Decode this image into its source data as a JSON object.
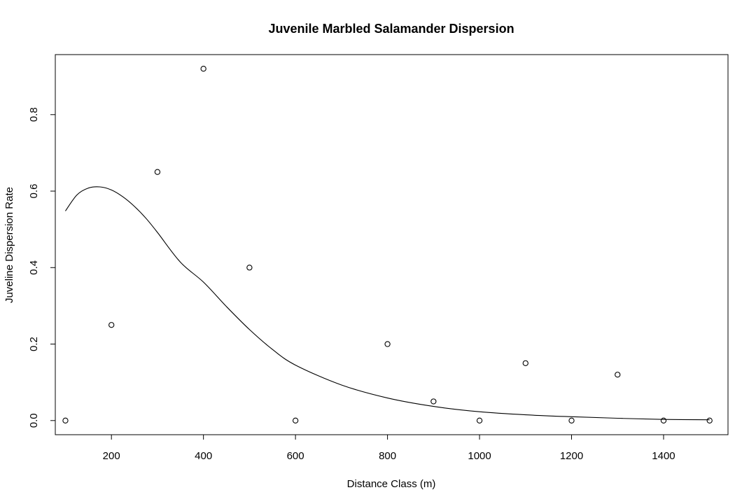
{
  "chart_data": {
    "type": "scatter",
    "title": "Juvenile Marbled Salamander Dispersion",
    "xlabel": "Distance Class (m)",
    "ylabel": "Juveline Dispersion Rate",
    "xlim": [
      78,
      1540
    ],
    "ylim": [
      -0.037,
      0.957
    ],
    "x_ticks": [
      200,
      400,
      600,
      800,
      1000,
      1200,
      1400
    ],
    "x_tick_labels": [
      "200",
      "400",
      "600",
      "800",
      "1000",
      "1200",
      "1400"
    ],
    "y_ticks": [
      0.0,
      0.2,
      0.4,
      0.6,
      0.8
    ],
    "y_tick_labels": [
      "0.0",
      "0.2",
      "0.4",
      "0.6",
      "0.8"
    ],
    "grid": false,
    "marker": "open-circle",
    "points": [
      {
        "x": 100,
        "y": 0.0
      },
      {
        "x": 200,
        "y": 0.25
      },
      {
        "x": 300,
        "y": 0.65
      },
      {
        "x": 400,
        "y": 0.92
      },
      {
        "x": 500,
        "y": 0.4
      },
      {
        "x": 600,
        "y": 0.0
      },
      {
        "x": 800,
        "y": 0.2
      },
      {
        "x": 900,
        "y": 0.05
      },
      {
        "x": 1000,
        "y": 0.0
      },
      {
        "x": 1100,
        "y": 0.15
      },
      {
        "x": 1200,
        "y": 0.0
      },
      {
        "x": 1300,
        "y": 0.12
      },
      {
        "x": 1400,
        "y": 0.0
      },
      {
        "x": 1500,
        "y": 0.0
      }
    ],
    "fitted_curve": {
      "x": [
        100,
        125,
        150,
        175,
        200,
        225,
        250,
        275,
        300,
        350,
        400,
        450,
        500,
        550,
        600,
        700,
        800,
        900,
        1000,
        1100,
        1200,
        1300,
        1400,
        1500
      ],
      "y": [
        0.548,
        0.59,
        0.608,
        0.611,
        0.603,
        0.585,
        0.56,
        0.529,
        0.492,
        0.414,
        0.362,
        0.298,
        0.238,
        0.186,
        0.145,
        0.093,
        0.059,
        0.037,
        0.023,
        0.015,
        0.01,
        0.006,
        0.003,
        0.002
      ]
    },
    "colors": {
      "line": "#000000",
      "marker": "#000000",
      "background": "#ffffff"
    }
  }
}
